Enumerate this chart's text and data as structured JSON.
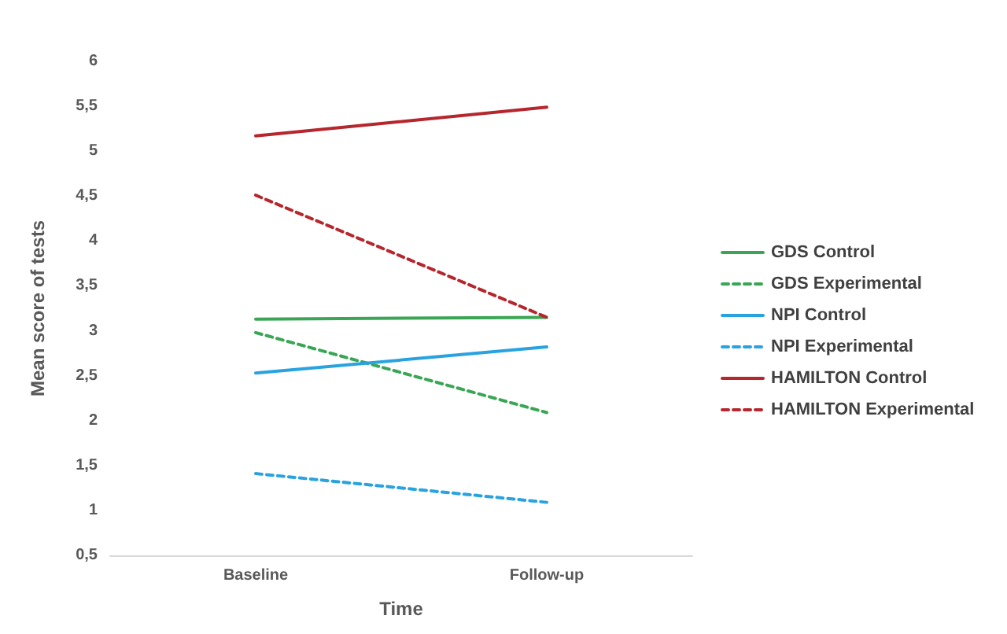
{
  "chart_data": {
    "type": "line",
    "xlabel": "Time",
    "ylabel": "Mean score of tests",
    "categories": [
      "Baseline",
      "Follow-up"
    ],
    "series": [
      {
        "name": "GDS Control",
        "color": "#3aa655",
        "line_style": "solid",
        "values": [
          3.13,
          3.15
        ]
      },
      {
        "name": "GDS Experimental",
        "color": "#3aa655",
        "line_style": "dashed",
        "values": [
          2.98,
          2.09
        ]
      },
      {
        "name": "NPI Control",
        "color": "#29a3e0",
        "line_style": "solid",
        "values": [
          2.53,
          2.82
        ]
      },
      {
        "name": "NPI Experimental",
        "color": "#29a3e0",
        "line_style": "dashed",
        "values": [
          1.41,
          1.09
        ]
      },
      {
        "name": "HAMILTON Control",
        "color": "#b5262d",
        "line_style": "solid",
        "values": [
          5.17,
          5.49
        ]
      },
      {
        "name": "HAMILTON Experimental",
        "color": "#b5262d",
        "line_style": "dashed",
        "values": [
          4.51,
          3.15
        ]
      }
    ],
    "ylim": [
      0.5,
      6
    ],
    "yticks": [
      {
        "value": 0.5,
        "label": "0,5"
      },
      1,
      {
        "value": 1.5,
        "label": "1,5"
      },
      2,
      {
        "value": 2.5,
        "label": "2,5"
      },
      3,
      {
        "value": 3.5,
        "label": "3,5"
      },
      4,
      {
        "value": 4.5,
        "label": "4,5"
      },
      5,
      {
        "value": 5.5,
        "label": "5,5"
      },
      6
    ],
    "grid": false,
    "legend": "right",
    "marker": "none"
  }
}
